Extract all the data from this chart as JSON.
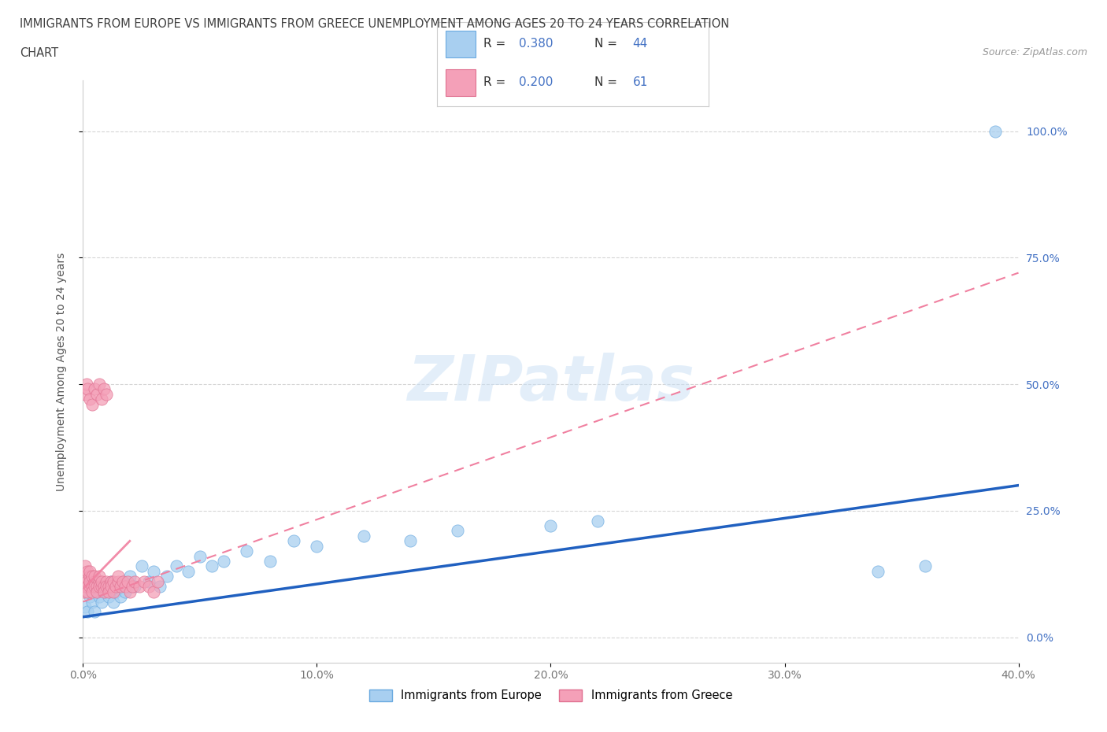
{
  "title_line1": "IMMIGRANTS FROM EUROPE VS IMMIGRANTS FROM GREECE UNEMPLOYMENT AMONG AGES 20 TO 24 YEARS CORRELATION",
  "title_line2": "CHART",
  "source": "Source: ZipAtlas.com",
  "ylabel": "Unemployment Among Ages 20 to 24 years",
  "xmin": 0.0,
  "xmax": 0.4,
  "ymin": -0.05,
  "ymax": 1.1,
  "yticks": [
    0.0,
    0.25,
    0.5,
    0.75,
    1.0
  ],
  "ytick_labels": [
    "0.0%",
    "25.0%",
    "50.0%",
    "75.0%",
    "100.0%"
  ],
  "xticks": [
    0.0,
    0.1,
    0.2,
    0.3,
    0.4
  ],
  "xtick_labels": [
    "0.0%",
    "10.0%",
    "20.0%",
    "30.0%",
    "40.0%"
  ],
  "color_europe": "#a8cff0",
  "color_europe_edge": "#6aaae0",
  "color_greece": "#f4a0b8",
  "color_greece_edge": "#e07090",
  "color_europe_line": "#2060c0",
  "color_greece_line": "#f080a0",
  "watermark": "ZIPatlas",
  "europe_x": [
    0.001,
    0.002,
    0.003,
    0.004,
    0.005,
    0.006,
    0.006,
    0.007,
    0.008,
    0.009,
    0.01,
    0.011,
    0.012,
    0.013,
    0.014,
    0.015,
    0.016,
    0.017,
    0.018,
    0.019,
    0.02,
    0.022,
    0.025,
    0.028,
    0.03,
    0.033,
    0.036,
    0.04,
    0.045,
    0.05,
    0.055,
    0.06,
    0.07,
    0.08,
    0.09,
    0.1,
    0.12,
    0.14,
    0.16,
    0.2,
    0.22,
    0.34,
    0.36,
    0.39
  ],
  "europe_y": [
    0.06,
    0.05,
    0.08,
    0.07,
    0.05,
    0.09,
    0.11,
    0.08,
    0.07,
    0.1,
    0.09,
    0.08,
    0.11,
    0.07,
    0.09,
    0.1,
    0.08,
    0.11,
    0.09,
    0.1,
    0.12,
    0.1,
    0.14,
    0.11,
    0.13,
    0.1,
    0.12,
    0.14,
    0.13,
    0.16,
    0.14,
    0.15,
    0.17,
    0.15,
    0.19,
    0.18,
    0.2,
    0.19,
    0.21,
    0.22,
    0.23,
    0.13,
    0.14,
    1.0
  ],
  "greece_x": [
    0.0005,
    0.001,
    0.001,
    0.001,
    0.0015,
    0.002,
    0.002,
    0.002,
    0.003,
    0.003,
    0.003,
    0.003,
    0.004,
    0.004,
    0.004,
    0.005,
    0.005,
    0.005,
    0.006,
    0.006,
    0.007,
    0.007,
    0.007,
    0.008,
    0.008,
    0.009,
    0.009,
    0.01,
    0.01,
    0.011,
    0.011,
    0.012,
    0.012,
    0.013,
    0.013,
    0.014,
    0.015,
    0.015,
    0.016,
    0.017,
    0.018,
    0.019,
    0.02,
    0.021,
    0.022,
    0.024,
    0.026,
    0.028,
    0.03,
    0.032,
    0.001,
    0.0015,
    0.002,
    0.003,
    0.004,
    0.005,
    0.006,
    0.007,
    0.008,
    0.009,
    0.01
  ],
  "greece_y": [
    0.09,
    0.1,
    0.12,
    0.14,
    0.11,
    0.1,
    0.13,
    0.09,
    0.12,
    0.1,
    0.13,
    0.11,
    0.1,
    0.12,
    0.09,
    0.11,
    0.1,
    0.12,
    0.1,
    0.09,
    0.11,
    0.1,
    0.12,
    0.1,
    0.11,
    0.1,
    0.09,
    0.11,
    0.1,
    0.1,
    0.09,
    0.11,
    0.1,
    0.11,
    0.09,
    0.1,
    0.11,
    0.12,
    0.1,
    0.11,
    0.1,
    0.11,
    0.09,
    0.1,
    0.11,
    0.1,
    0.11,
    0.1,
    0.09,
    0.11,
    0.48,
    0.5,
    0.49,
    0.47,
    0.46,
    0.49,
    0.48,
    0.5,
    0.47,
    0.49,
    0.48
  ],
  "europe_line_x0": 0.0,
  "europe_line_y0": 0.04,
  "europe_line_x1": 0.4,
  "europe_line_y1": 0.3,
  "greece_line_x0": 0.0,
  "greece_line_y0": 0.07,
  "greece_line_x1": 0.4,
  "greece_line_y1": 0.72
}
